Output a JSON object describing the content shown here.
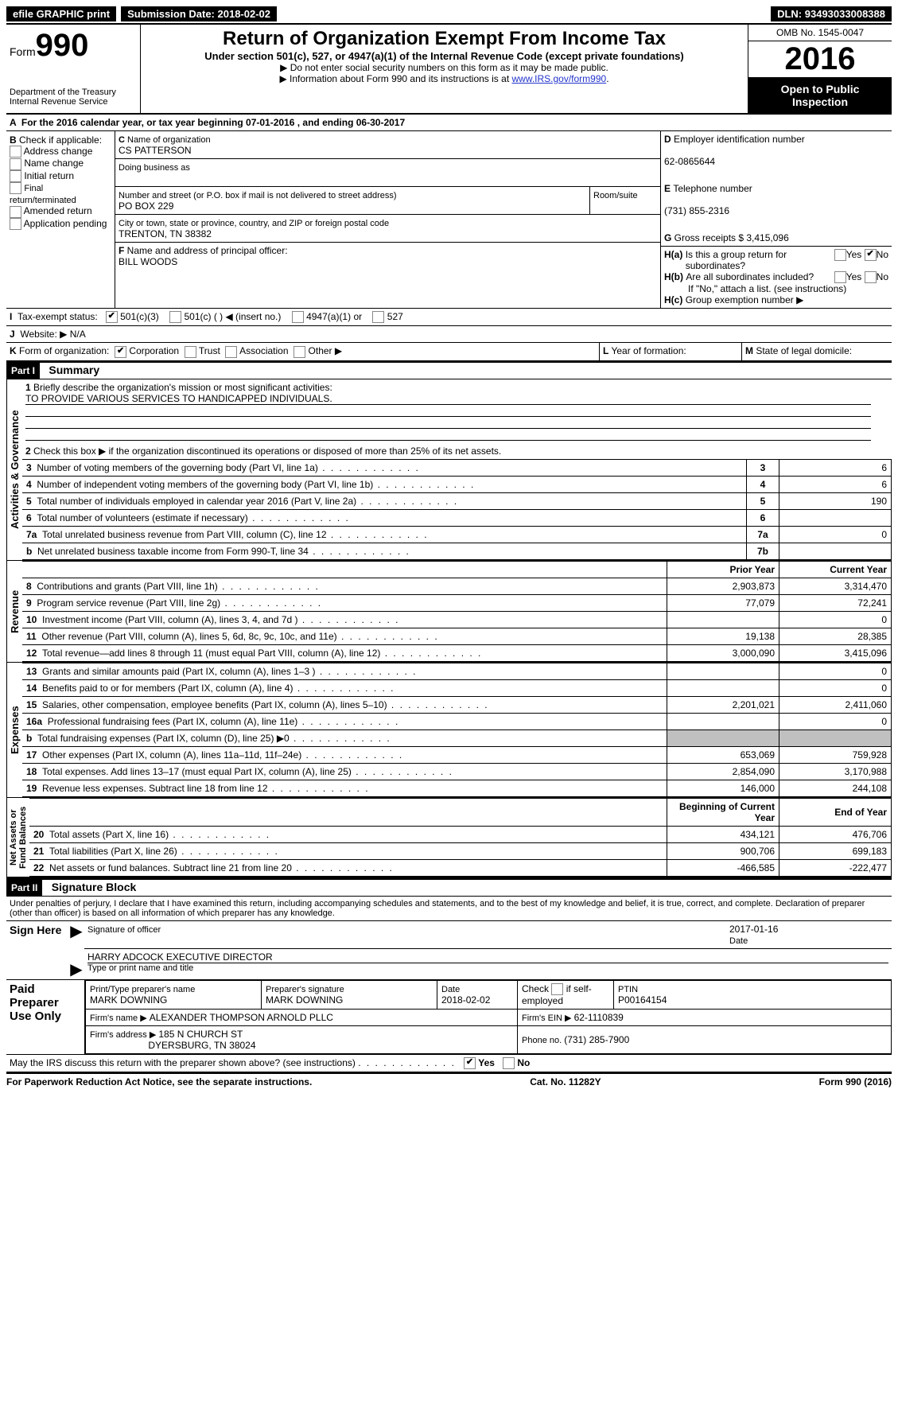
{
  "topbar": {
    "efile": "efile GRAPHIC print",
    "sub_label": "Submission Date: ",
    "sub_date": "2018-02-02",
    "dln_label": "DLN: ",
    "dln": "93493033008388"
  },
  "header": {
    "form_word": "Form",
    "form_num": "990",
    "dept1": "Department of the Treasury",
    "dept2": "Internal Revenue Service",
    "title": "Return of Organization Exempt From Income Tax",
    "sub1": "Under section 501(c), 527, or 4947(a)(1) of the Internal Revenue Code (except private foundations)",
    "sub2": "Do not enter social security numbers on this form as it may be made public.",
    "sub3_pre": "Information about Form 990 and its instructions is at ",
    "sub3_link": "www.IRS.gov/form990",
    "omb": "OMB No. 1545-0047",
    "year": "2016",
    "open": "Open to Public Inspection"
  },
  "A": {
    "text_pre": "For the 2016 calendar year, or tax year beginning ",
    "begin": "07-01-2016",
    "mid": "  , and ending ",
    "end": "06-30-2017"
  },
  "B": {
    "label": "Check if applicable:",
    "o1": "Address change",
    "o2": "Name change",
    "o3": "Initial return",
    "o4": "Final return/terminated",
    "o5": "Amended return",
    "o6": "Application pending"
  },
  "C": {
    "label": "Name of organization",
    "name": "CS PATTERSON",
    "dba": "Doing business as",
    "addr_label": "Number and street (or P.O. box if mail is not delivered to street address)",
    "room": "Room/suite",
    "addr": "PO BOX 229",
    "city_label": "City or town, state or province, country, and ZIP or foreign postal code",
    "city": "TRENTON, TN  38382"
  },
  "D": {
    "label": "Employer identification number",
    "val": "62-0865644"
  },
  "E": {
    "label": "Telephone number",
    "val": "(731) 855-2316"
  },
  "F": {
    "label": "Name and address of principal officer:",
    "val": "BILL WOODS"
  },
  "G": {
    "label": "Gross receipts $ ",
    "val": "3,415,096"
  },
  "H": {
    "a": "Is this a group return for subordinates?",
    "b": "Are all subordinates included?",
    "note": "If \"No,\" attach a list. (see instructions)",
    "c": "Group exemption number ▶",
    "yes": "Yes",
    "no": "No"
  },
  "I": {
    "label": "Tax-exempt status:",
    "o1": "501(c)(3)",
    "o2": "501(c) (   ) ◀ (insert no.)",
    "o3": "4947(a)(1) or",
    "o4": "527"
  },
  "J": {
    "label": "Website: ▶",
    "val": "N/A"
  },
  "K": {
    "label": "Form of organization:",
    "o1": "Corporation",
    "o2": "Trust",
    "o3": "Association",
    "o4": "Other ▶"
  },
  "L": "Year of formation:",
  "M": "State of legal domicile:",
  "part1": {
    "tag": "Part I",
    "title": "Summary",
    "l1": "Briefly describe the organization's mission or most significant activities:",
    "mission": "TO PROVIDE VARIOUS SERVICES TO HANDICAPPED INDIVIDUALS.",
    "l2": "Check this box ▶        if the organization discontinued its operations or disposed of more than 25% of its net assets.",
    "lines_gov": [
      {
        "n": "3",
        "d": "Number of voting members of the governing body (Part VI, line 1a)",
        "box": "3",
        "v": "6"
      },
      {
        "n": "4",
        "d": "Number of independent voting members of the governing body (Part VI, line 1b)",
        "box": "4",
        "v": "6"
      },
      {
        "n": "5",
        "d": "Total number of individuals employed in calendar year 2016 (Part V, line 2a)",
        "box": "5",
        "v": "190"
      },
      {
        "n": "6",
        "d": "Total number of volunteers (estimate if necessary)",
        "box": "6",
        "v": ""
      },
      {
        "n": "7a",
        "d": "Total unrelated business revenue from Part VIII, column (C), line 12",
        "box": "7a",
        "v": "0"
      },
      {
        "n": "b",
        "d": "Net unrelated business taxable income from Form 990-T, line 34",
        "box": "7b",
        "v": ""
      }
    ],
    "h_prior": "Prior Year",
    "h_curr": "Current Year",
    "rev": [
      {
        "n": "8",
        "d": "Contributions and grants (Part VIII, line 1h)",
        "p": "2,903,873",
        "c": "3,314,470"
      },
      {
        "n": "9",
        "d": "Program service revenue (Part VIII, line 2g)",
        "p": "77,079",
        "c": "72,241"
      },
      {
        "n": "10",
        "d": "Investment income (Part VIII, column (A), lines 3, 4, and 7d )",
        "p": "",
        "c": "0"
      },
      {
        "n": "11",
        "d": "Other revenue (Part VIII, column (A), lines 5, 6d, 8c, 9c, 10c, and 11e)",
        "p": "19,138",
        "c": "28,385"
      },
      {
        "n": "12",
        "d": "Total revenue—add lines 8 through 11 (must equal Part VIII, column (A), line 12)",
        "p": "3,000,090",
        "c": "3,415,096"
      }
    ],
    "exp": [
      {
        "n": "13",
        "d": "Grants and similar amounts paid (Part IX, column (A), lines 1–3 )",
        "p": "",
        "c": "0"
      },
      {
        "n": "14",
        "d": "Benefits paid to or for members (Part IX, column (A), line 4)",
        "p": "",
        "c": "0"
      },
      {
        "n": "15",
        "d": "Salaries, other compensation, employee benefits (Part IX, column (A), lines 5–10)",
        "p": "2,201,021",
        "c": "2,411,060"
      },
      {
        "n": "16a",
        "d": "Professional fundraising fees (Part IX, column (A), line 11e)",
        "p": "",
        "c": "0"
      },
      {
        "n": "b",
        "d": "Total fundraising expenses (Part IX, column (D), line 25) ▶0",
        "p": "shade",
        "c": "shade"
      },
      {
        "n": "17",
        "d": "Other expenses (Part IX, column (A), lines 11a–11d, 11f–24e)",
        "p": "653,069",
        "c": "759,928"
      },
      {
        "n": "18",
        "d": "Total expenses. Add lines 13–17 (must equal Part IX, column (A), line 25)",
        "p": "2,854,090",
        "c": "3,170,988"
      },
      {
        "n": "19",
        "d": "Revenue less expenses. Subtract line 18 from line 12",
        "p": "146,000",
        "c": "244,108"
      }
    ],
    "h_begin": "Beginning of Current Year",
    "h_end": "End of Year",
    "net": [
      {
        "n": "20",
        "d": "Total assets (Part X, line 16)",
        "p": "434,121",
        "c": "476,706"
      },
      {
        "n": "21",
        "d": "Total liabilities (Part X, line 26)",
        "p": "900,706",
        "c": "699,183"
      },
      {
        "n": "22",
        "d": "Net assets or fund balances. Subtract line 21 from line 20",
        "p": "-466,585",
        "c": "-222,477"
      }
    ]
  },
  "part2": {
    "tag": "Part II",
    "title": "Signature Block",
    "decl": "Under penalties of perjury, I declare that I have examined this return, including accompanying schedules and statements, and to the best of my knowledge and belief, it is true, correct, and complete. Declaration of preparer (other than officer) is based on all information of which preparer has any knowledge.",
    "sign_here": "Sign Here",
    "sig_officer": "Signature of officer",
    "sig_date": "2017-01-16",
    "date_lbl": "Date",
    "name_title": "HARRY ADCOCK  EXECUTIVE DIRECTOR",
    "name_lbl": "Type or print name and title",
    "paid": "Paid Preparer Use Only",
    "prep_name_lbl": "Print/Type preparer's name",
    "prep_name": "MARK DOWNING",
    "prep_sig_lbl": "Preparer's signature",
    "prep_sig": "MARK DOWNING",
    "prep_date_lbl": "Date",
    "prep_date": "2018-02-02",
    "self_lbl": "Check        if self-employed",
    "ptin_lbl": "PTIN",
    "ptin": "P00164154",
    "firm_name_lbl": "Firm's name     ▶ ",
    "firm_name": "ALEXANDER THOMPSON ARNOLD PLLC",
    "firm_ein_lbl": "Firm's EIN ▶ ",
    "firm_ein": "62-1110839",
    "firm_addr_lbl": "Firm's address ▶ ",
    "firm_addr": "185 N CHURCH ST",
    "firm_city": "DYERSBURG, TN  38024",
    "phone_lbl": "Phone no. ",
    "phone": "(731) 285-7900",
    "discuss": "May the IRS discuss this return with the preparer shown above? (see instructions)",
    "yes": "Yes",
    "no": "No"
  },
  "footer": {
    "left": "For Paperwork Reduction Act Notice, see the separate instructions.",
    "mid": "Cat. No. 11282Y",
    "right": "Form 990 (2016)"
  }
}
